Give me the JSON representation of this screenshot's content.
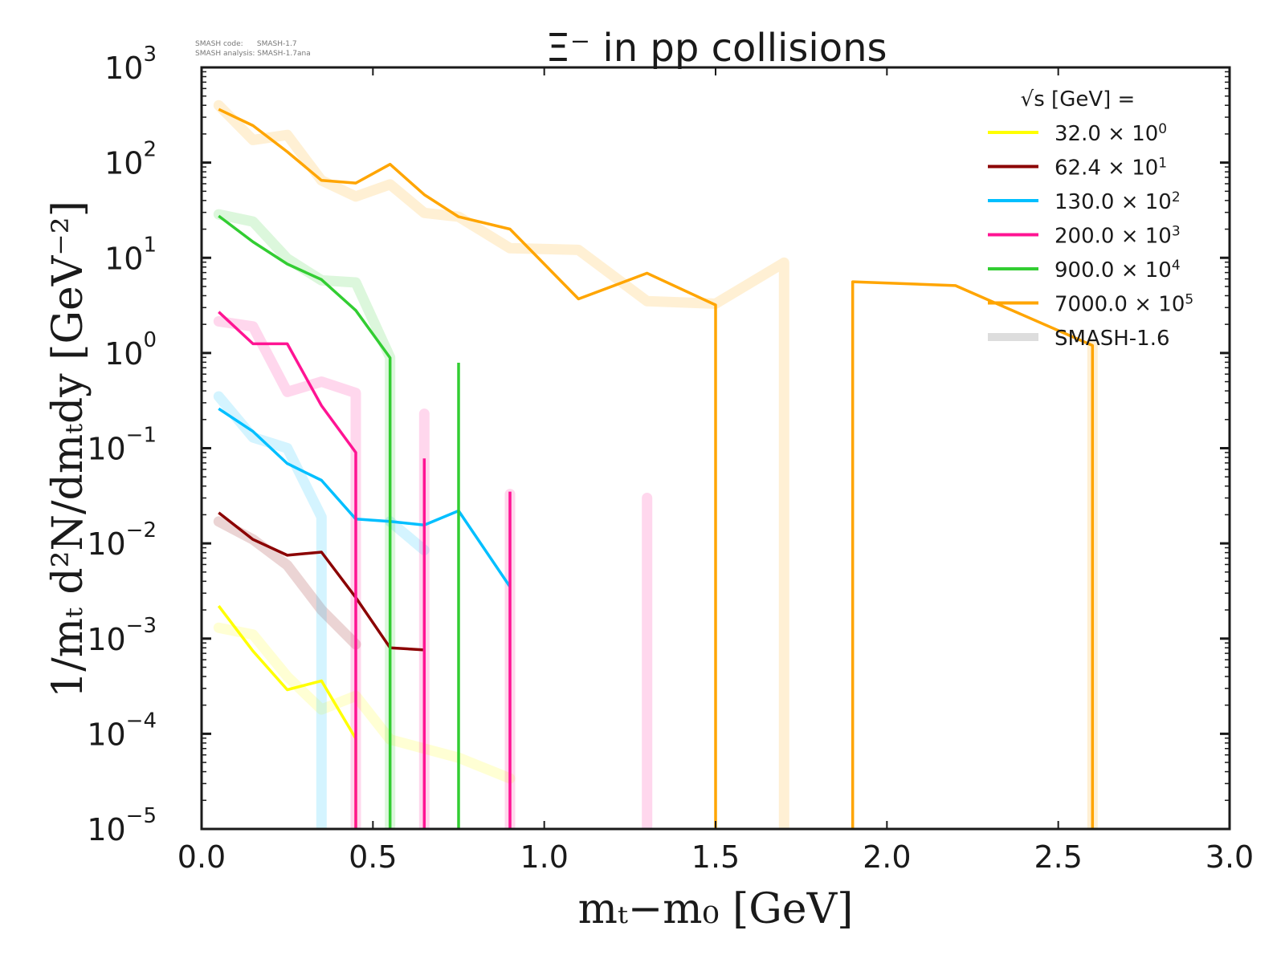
{
  "version_info": {
    "line1": "SMASH code:      SMASH-1.7",
    "line2": "SMASH analysis: SMASH-1.7ana"
  },
  "chart_data": {
    "type": "line",
    "title": "Ξ⁻ in pp collisions",
    "xlabel": "mₜ−m₀ [GeV]",
    "ylabel": "1/mₜ d²N/dmₜdy [GeV⁻²]",
    "xlim": [
      0.0,
      3.0
    ],
    "ylim": [
      1e-05,
      1000.0
    ],
    "yscale": "log",
    "grid": false,
    "xticks": [
      "0.0",
      "0.5",
      "1.0",
      "1.5",
      "2.0",
      "2.5",
      "3.0"
    ],
    "yticks": [
      {
        "base": "10",
        "exp": "3"
      },
      {
        "base": "10",
        "exp": "2"
      },
      {
        "base": "10",
        "exp": "1"
      },
      {
        "base": "10",
        "exp": "0"
      },
      {
        "base": "10",
        "exp": "−1"
      },
      {
        "base": "10",
        "exp": "−2"
      },
      {
        "base": "10",
        "exp": "−3"
      },
      {
        "base": "10",
        "exp": "−4"
      },
      {
        "base": "10",
        "exp": "−5"
      }
    ],
    "legend": {
      "placement": "top-right",
      "header": "√s  [GeV] =",
      "entries": [
        {
          "label": "32.0 × 10",
          "exp": "0",
          "color": "#ffff00"
        },
        {
          "label": "62.4 × 10",
          "exp": "1",
          "color": "#8b0000"
        },
        {
          "label": "130.0 × 10",
          "exp": "2",
          "color": "#00bfff"
        },
        {
          "label": "200.0 × 10",
          "exp": "3",
          "color": "#ff1493"
        },
        {
          "label": "900.0 × 10",
          "exp": "4",
          "color": "#32cd32"
        },
        {
          "label": "7000.0 × 10",
          "exp": "5",
          "color": "#ffa500"
        },
        {
          "label": "SMASH-1.6",
          "exp": "",
          "color": "#dddddd"
        }
      ]
    },
    "series": [
      {
        "name": "32.0",
        "color": "#ffff00",
        "version": "SMASH-1.7",
        "x": [
          0.05,
          0.15,
          0.25,
          0.35,
          0.45,
          0.45
        ],
        "y": [
          0.0022,
          0.00074,
          0.00029,
          0.00036,
          8.9e-05,
          1e-05
        ]
      },
      {
        "name": "62.4",
        "color": "#8b0000",
        "version": "SMASH-1.7",
        "x": [
          0.05,
          0.15,
          0.25,
          0.35,
          0.45,
          0.55,
          0.65
        ],
        "y": [
          0.021,
          0.011,
          0.0075,
          0.0081,
          0.0027,
          0.0008,
          0.00076
        ]
      },
      {
        "name": "130.0",
        "color": "#00bfff",
        "version": "SMASH-1.7",
        "x": [
          0.05,
          0.15,
          0.25,
          0.35,
          0.45,
          0.55,
          0.65,
          0.75,
          0.9
        ],
        "y": [
          0.26,
          0.15,
          0.069,
          0.046,
          0.018,
          0.017,
          0.0156,
          0.022,
          0.0035
        ]
      },
      {
        "name": "200.0",
        "color": "#ff1493",
        "version": "SMASH-1.7",
        "x": [
          0.05,
          0.15,
          0.25,
          0.35,
          0.45,
          0.45,
          0.65,
          0.65,
          0.9,
          0.9
        ],
        "y": [
          2.7,
          1.25,
          1.25,
          0.28,
          0.09,
          1e-05,
          1e-05,
          0.078,
          0.035,
          1e-05
        ],
        "segments": [
          [
            0,
            6
          ],
          [
            6,
            8
          ],
          [
            8,
            10
          ]
        ]
      },
      {
        "name": "900.0",
        "color": "#32cd32",
        "version": "SMASH-1.7",
        "x": [
          0.05,
          0.15,
          0.25,
          0.35,
          0.45,
          0.55,
          0.55,
          0.75,
          0.75
        ],
        "y": [
          27.5,
          14.7,
          8.6,
          5.9,
          2.8,
          0.89,
          1e-05,
          0.79,
          1e-05
        ],
        "segments": [
          [
            0,
            7
          ],
          [
            7,
            9
          ]
        ]
      },
      {
        "name": "7000.0",
        "color": "#ffa500",
        "version": "SMASH-1.7",
        "x": [
          0.05,
          0.15,
          0.25,
          0.35,
          0.45,
          0.55,
          0.65,
          0.75,
          0.9,
          1.1,
          1.3,
          1.5,
          1.5,
          1.9,
          1.9,
          2.2,
          2.6,
          2.6
        ],
        "y": [
          363,
          245,
          130,
          65,
          61,
          96,
          46,
          27,
          20,
          3.7,
          6.9,
          3.2,
          1e-05,
          1e-05,
          5.6,
          5.1,
          1.2,
          1e-05
        ],
        "segments": [
          [
            0,
            13
          ],
          [
            13,
            18
          ]
        ]
      },
      {
        "name": "32.0",
        "color": "#ffff00",
        "version": "SMASH-1.6",
        "x": [
          0.05,
          0.15,
          0.25,
          0.35,
          0.45,
          0.55,
          0.75,
          0.9
        ],
        "y": [
          0.0013,
          0.0011,
          0.0004,
          0.00018,
          0.00025,
          8.7e-05,
          5.6e-05,
          3.4e-05
        ]
      },
      {
        "name": "62.4",
        "color": "#8b0000",
        "version": "SMASH-1.6",
        "x": [
          0.05,
          0.15,
          0.25,
          0.35,
          0.45
        ],
        "y": [
          0.017,
          0.011,
          0.0059,
          0.002,
          0.00087
        ]
      },
      {
        "name": "130.0",
        "color": "#00bfff",
        "version": "SMASH-1.6",
        "x": [
          0.05,
          0.15,
          0.25,
          0.35,
          0.35,
          0.55,
          0.65
        ],
        "y": [
          0.35,
          0.13,
          0.1,
          0.019,
          1e-05,
          0.017,
          0.0085
        ],
        "segments": [
          [
            0,
            5
          ],
          [
            5,
            7
          ]
        ]
      },
      {
        "name": "200.0",
        "color": "#ff1493",
        "version": "SMASH-1.6",
        "x": [
          0.05,
          0.15,
          0.25,
          0.35,
          0.45,
          0.45,
          0.65,
          0.65,
          0.9,
          0.9,
          1.3,
          1.3
        ],
        "y": [
          2.15,
          1.9,
          0.39,
          0.5,
          0.38,
          1e-05,
          1e-05,
          0.23,
          0.033,
          1e-05,
          0.03,
          1e-05
        ],
        "segments": [
          [
            0,
            6
          ],
          [
            6,
            8
          ],
          [
            8,
            10
          ],
          [
            10,
            12
          ]
        ]
      },
      {
        "name": "900.0",
        "color": "#32cd32",
        "version": "SMASH-1.6",
        "x": [
          0.05,
          0.15,
          0.25,
          0.35,
          0.45,
          0.55,
          0.55
        ],
        "y": [
          28.6,
          24,
          9.8,
          5.8,
          5.5,
          0.9,
          1e-05
        ]
      },
      {
        "name": "7000.0",
        "color": "#ffa500",
        "version": "SMASH-1.6",
        "x": [
          0.05,
          0.15,
          0.25,
          0.35,
          0.45,
          0.55,
          0.65,
          0.75,
          0.9,
          1.1,
          1.3,
          1.5,
          1.7,
          1.7,
          2.6,
          2.6
        ],
        "y": [
          400,
          173,
          195,
          65,
          44,
          59,
          29.6,
          27,
          12.6,
          12.1,
          3.5,
          3.3,
          8.9,
          1e-05,
          1e-05,
          1.2
        ],
        "segments": [
          [
            0,
            14
          ],
          [
            14,
            16
          ]
        ]
      }
    ]
  }
}
